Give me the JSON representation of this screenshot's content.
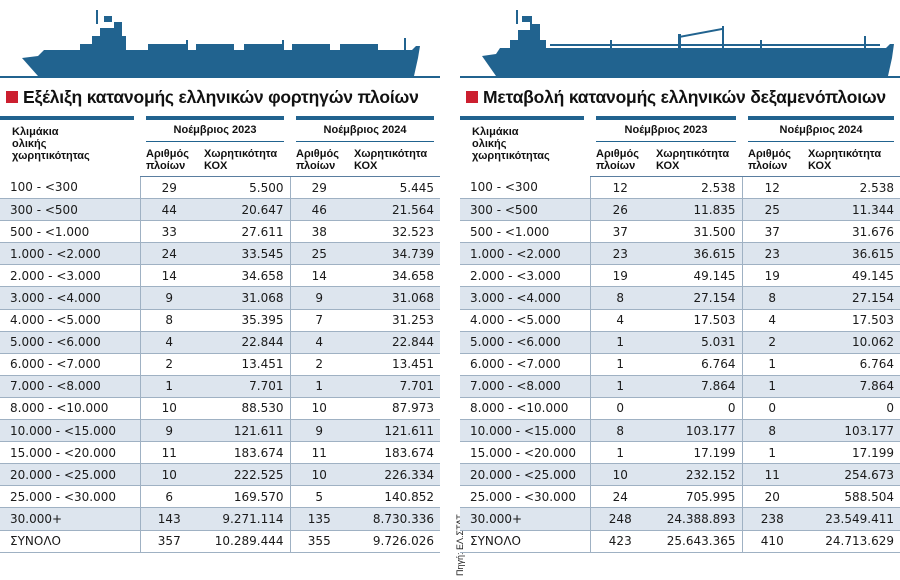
{
  "source_note": "Πηγή: ΕΛ.ΣΤΑΤ.",
  "colors": {
    "ship": "#21638f",
    "accent_square": "#cc1f2f",
    "row_shade": "#dde5ee"
  },
  "headers": {
    "category": "Κλιμάκια ολικής χωρητικότητας",
    "group_2023": "Νοέμβριος 2023",
    "group_2024": "Νοέμβριος 2024",
    "count": "Αριθμός πλοίων",
    "tonnage": "Χωρητικότητα ΚΟΧ"
  },
  "left": {
    "title": "Εξέλιξη κατανομής ελληνικών φορτηγών πλοίων",
    "rows": [
      [
        "100 - <300",
        "29",
        "5.500",
        "29",
        "5.445"
      ],
      [
        "300 - <500",
        "44",
        "20.647",
        "46",
        "21.564"
      ],
      [
        "500 - <1.000",
        "33",
        "27.611",
        "38",
        "32.523"
      ],
      [
        "1.000 - <2.000",
        "24",
        "33.545",
        "25",
        "34.739"
      ],
      [
        "2.000 - <3.000",
        "14",
        "34.658",
        "14",
        "34.658"
      ],
      [
        "3.000 - <4.000",
        "9",
        "31.068",
        "9",
        "31.068"
      ],
      [
        "4.000 - <5.000",
        "8",
        "35.395",
        "7",
        "31.253"
      ],
      [
        "5.000 - <6.000",
        "4",
        "22.844",
        "4",
        "22.844"
      ],
      [
        "6.000 - <7.000",
        "2",
        "13.451",
        "2",
        "13.451"
      ],
      [
        "7.000 - <8.000",
        "1",
        "7.701",
        "1",
        "7.701"
      ],
      [
        "8.000 - <10.000",
        "10",
        "88.530",
        "10",
        "87.973"
      ],
      [
        "10.000 - <15.000",
        "9",
        "121.611",
        "9",
        "121.611"
      ],
      [
        "15.000 - <20.000",
        "11",
        "183.674",
        "11",
        "183.674"
      ],
      [
        "20.000 - <25.000",
        "10",
        "222.525",
        "10",
        "226.334"
      ],
      [
        "25.000 - <30.000",
        "6",
        "169.570",
        "5",
        "140.852"
      ],
      [
        "30.000+",
        "143",
        "9.271.114",
        "135",
        "8.730.336"
      ],
      [
        "ΣΥΝΟΛΟ",
        "357",
        "10.289.444",
        "355",
        "9.726.026"
      ]
    ]
  },
  "right": {
    "title": "Μεταβολή κατανομής ελληνικών δεξαμενόπλοιων",
    "rows": [
      [
        "100 - <300",
        "12",
        "2.538",
        "12",
        "2.538"
      ],
      [
        "300 - <500",
        "26",
        "11.835",
        "25",
        "11.344"
      ],
      [
        "500 - <1.000",
        "37",
        "31.500",
        "37",
        "31.676"
      ],
      [
        "1.000 - <2.000",
        "23",
        "36.615",
        "23",
        "36.615"
      ],
      [
        "2.000 - <3.000",
        "19",
        "49.145",
        "19",
        "49.145"
      ],
      [
        "3.000 - <4.000",
        "8",
        "27.154",
        "8",
        "27.154"
      ],
      [
        "4.000 - <5.000",
        "4",
        "17.503",
        "4",
        "17.503"
      ],
      [
        "5.000 - <6.000",
        "1",
        "5.031",
        "2",
        "10.062"
      ],
      [
        "6.000 - <7.000",
        "1",
        "6.764",
        "1",
        "6.764"
      ],
      [
        "7.000 - <8.000",
        "1",
        "7.864",
        "1",
        "7.864"
      ],
      [
        "8.000 - <10.000",
        "0",
        "0",
        "0",
        "0"
      ],
      [
        "10.000 - <15.000",
        "8",
        "103.177",
        "8",
        "103.177"
      ],
      [
        "15.000 - <20.000",
        "1",
        "17.199",
        "1",
        "17.199"
      ],
      [
        "20.000 - <25.000",
        "10",
        "232.152",
        "11",
        "254.673"
      ],
      [
        "25.000 - <30.000",
        "24",
        "705.995",
        "20",
        "588.504"
      ],
      [
        "30.000+",
        "248",
        "24.388.893",
        "238",
        "23.549.411"
      ],
      [
        "ΣΥΝΟΛΟ",
        "423",
        "25.643.365",
        "410",
        "24.713.629"
      ]
    ]
  }
}
